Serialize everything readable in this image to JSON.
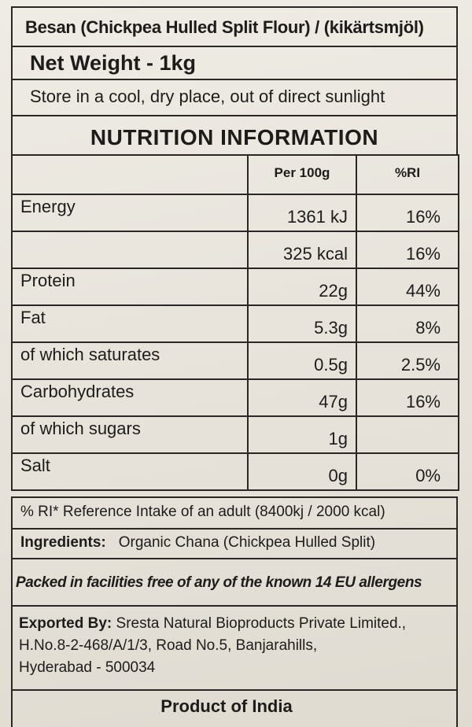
{
  "label": {
    "title": "Besan (Chickpea Hulled Split Flour) / (kikärtsmjöl)",
    "net_weight": "Net Weight - 1kg",
    "storage": "Store in a cool, dry place, out of direct sunlight",
    "nutrition_heading": "NUTRITION INFORMATION",
    "table": {
      "headers": [
        "",
        "Per 100g",
        "%RI"
      ],
      "rows": [
        {
          "name": "Energy",
          "per100g": "1361 kJ",
          "ri": "16%"
        },
        {
          "name": "",
          "per100g": "325 kcal",
          "ri": "16%"
        },
        {
          "name": "Protein",
          "per100g": "22g",
          "ri": "44%"
        },
        {
          "name": "Fat",
          "per100g": "5.3g",
          "ri": "8%"
        },
        {
          "name": "of which saturates",
          "per100g": "0.5g",
          "ri": "2.5%"
        },
        {
          "name": "Carbohydrates",
          "per100g": "47g",
          "ri": "16%"
        },
        {
          "name": "of which sugars",
          "per100g": "1g",
          "ri": ""
        },
        {
          "name": "Salt",
          "per100g": "0g",
          "ri": "0%"
        }
      ]
    },
    "ri_note": "% RI* Reference Intake of an adult (8400kj / 2000 kcal)",
    "ingredients_label": "Ingredients:",
    "ingredients_text": "Organic Chana (Chickpea Hulled Split)",
    "allergen_note": "Packed in facilities free of any of the known 14 EU allergens",
    "exported_label": "Exported By:",
    "exporter_name": "Sresta Natural Bioproducts Private Limited.,",
    "exporter_address_1": "H.No.8-2-468/A/1/3, Road No.5, Banjarahills,",
    "exporter_address_2": "Hyderabad - 500034",
    "origin": "Product of India"
  }
}
